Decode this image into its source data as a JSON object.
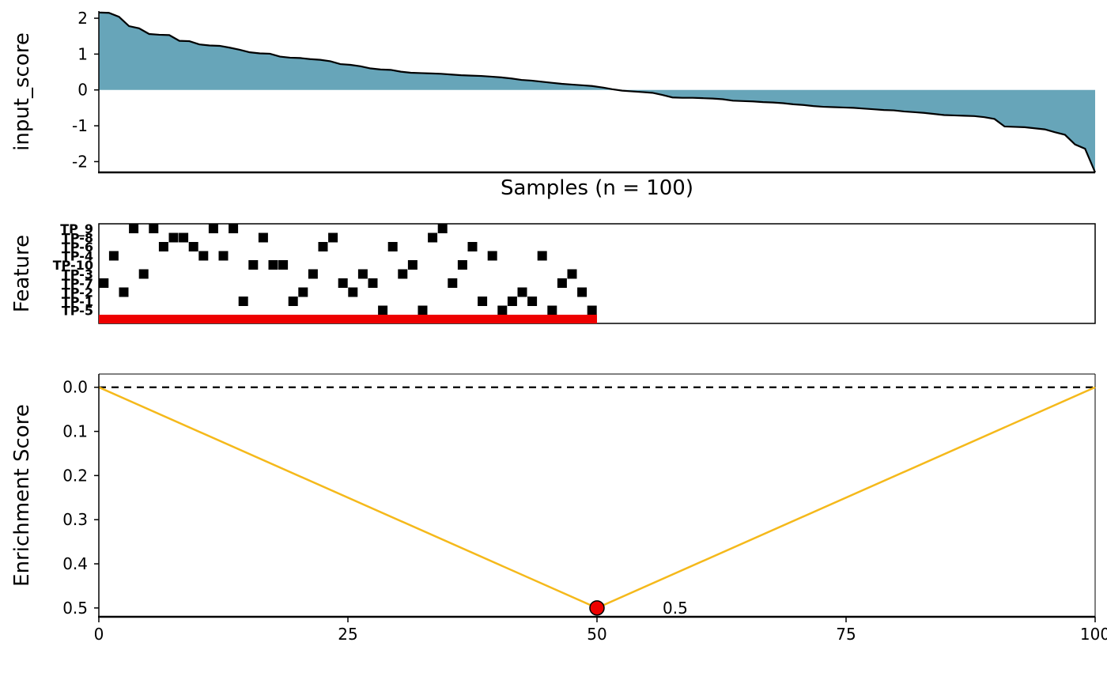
{
  "chart_data": [
    {
      "type": "area",
      "ylabel": "input_score",
      "xlabel": "Samples (n = 100)",
      "ylim": [
        -2.3,
        2.2
      ],
      "yticks": [
        2,
        1,
        0,
        -1,
        -2
      ],
      "ytick_labels": [
        "2",
        "1",
        "0",
        "-1",
        "-2"
      ],
      "fill_color": "#67A5B9",
      "line_color": "#000000",
      "values": [
        2.16,
        2.15,
        2.04,
        1.78,
        1.72,
        1.56,
        1.54,
        1.53,
        1.37,
        1.36,
        1.27,
        1.24,
        1.23,
        1.18,
        1.12,
        1.05,
        1.02,
        1.01,
        0.93,
        0.9,
        0.89,
        0.86,
        0.84,
        0.8,
        0.72,
        0.7,
        0.66,
        0.6,
        0.57,
        0.56,
        0.51,
        0.48,
        0.47,
        0.46,
        0.45,
        0.43,
        0.41,
        0.4,
        0.39,
        0.37,
        0.35,
        0.32,
        0.28,
        0.26,
        0.23,
        0.2,
        0.17,
        0.15,
        0.13,
        0.11,
        0.07,
        0.02,
        -0.02,
        -0.04,
        -0.06,
        -0.08,
        -0.14,
        -0.21,
        -0.22,
        -0.22,
        -0.23,
        -0.24,
        -0.26,
        -0.3,
        -0.31,
        -0.32,
        -0.34,
        -0.35,
        -0.37,
        -0.4,
        -0.42,
        -0.45,
        -0.47,
        -0.48,
        -0.49,
        -0.5,
        -0.52,
        -0.54,
        -0.56,
        -0.57,
        -0.6,
        -0.62,
        -0.64,
        -0.67,
        -0.7,
        -0.71,
        -0.72,
        -0.73,
        -0.76,
        -0.81,
        -1.02,
        -1.03,
        -1.04,
        -1.07,
        -1.1,
        -1.18,
        -1.25,
        -1.52,
        -1.64,
        -2.3
      ]
    },
    {
      "type": "scatter",
      "ylabel": "Feature",
      "features": [
        "TP_9",
        "TP_8",
        "TP_6",
        "TP_4",
        "TP_10",
        "TP_3",
        "TP_7",
        "TP_2",
        "TP_1",
        "TP_5"
      ],
      "feature_labels": [
        "TP_9",
        "TP-8",
        "TP-6",
        "TP-4",
        "TP-10",
        "TP-3",
        "TP-7",
        "TP-2",
        "TP-1",
        "TP-5"
      ],
      "hits": {
        "TP_9": [
          4,
          6,
          12,
          14,
          35
        ],
        "TP_8": [
          8,
          9,
          17,
          24,
          34
        ],
        "TP_6": [
          7,
          10,
          23,
          30,
          38
        ],
        "TP_4": [
          2,
          11,
          13,
          40,
          45
        ],
        "TP_10": [
          16,
          18,
          19,
          32,
          37
        ],
        "TP_3": [
          5,
          22,
          27,
          31,
          48
        ],
        "TP_7": [
          1,
          25,
          28,
          36,
          47
        ],
        "TP_2": [
          3,
          21,
          26,
          43,
          49
        ],
        "TP_1": [
          15,
          20,
          39,
          42,
          44
        ],
        "TP_5": [
          29,
          33,
          41,
          46,
          50
        ]
      },
      "marker_color": "#000000",
      "set_bar": {
        "from": 0,
        "to": 50,
        "color": "#EE0000"
      }
    },
    {
      "type": "line",
      "ylabel": "Enrichment Score",
      "ylim": [
        0.52,
        -0.03
      ],
      "yticks": [
        0.0,
        0.1,
        0.2,
        0.3,
        0.4,
        0.5
      ],
      "ytick_labels": [
        "0.0",
        "0.1",
        "0.2",
        "0.3",
        "0.4",
        "0.5"
      ],
      "xlim": [
        0,
        100
      ],
      "xticks": [
        0,
        25,
        50,
        75,
        100
      ],
      "xtick_labels": [
        "0",
        "25",
        "50",
        "75",
        "100"
      ],
      "x": [
        0,
        50,
        100
      ],
      "y": [
        0,
        0.5,
        0
      ],
      "line_color": "#F5B91B",
      "reference_line": 0,
      "peak": {
        "x": 50,
        "y": 0.5,
        "label": "0.5",
        "color": "#EE0000"
      }
    }
  ]
}
